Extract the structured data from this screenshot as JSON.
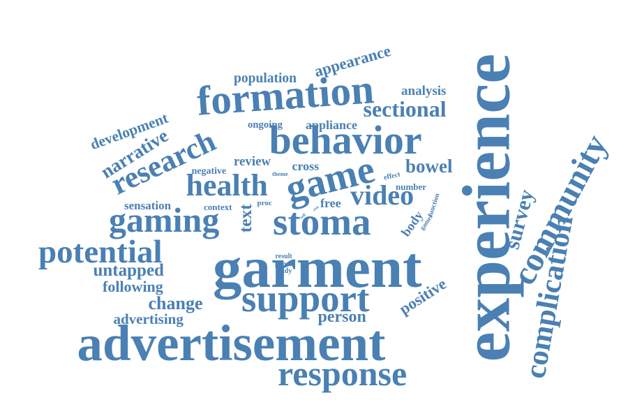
{
  "color": "#4a80b3",
  "words": [
    {
      "id": "advertisement",
      "text": "advertisement"
    },
    {
      "id": "experience",
      "text": "experience"
    },
    {
      "id": "garment",
      "text": "garment"
    },
    {
      "id": "support",
      "text": "support"
    },
    {
      "id": "stoma",
      "text": "stoma"
    },
    {
      "id": "behavior",
      "text": "behavior"
    },
    {
      "id": "formation",
      "text": "formation"
    },
    {
      "id": "response",
      "text": "response"
    },
    {
      "id": "community",
      "text": "community"
    },
    {
      "id": "gaming",
      "text": "gaming"
    },
    {
      "id": "potential",
      "text": "potential"
    },
    {
      "id": "health",
      "text": "health"
    },
    {
      "id": "game",
      "text": "game"
    },
    {
      "id": "research",
      "text": "research"
    },
    {
      "id": "video",
      "text": "video"
    },
    {
      "id": "complication",
      "text": "complication"
    },
    {
      "id": "sectional",
      "text": "sectional"
    },
    {
      "id": "narrative",
      "text": "narrative"
    },
    {
      "id": "development",
      "text": "development"
    },
    {
      "id": "untapped",
      "text": "untapped"
    },
    {
      "id": "following",
      "text": "following"
    },
    {
      "id": "change",
      "text": "change"
    },
    {
      "id": "bowel",
      "text": "bowel"
    },
    {
      "id": "survey",
      "text": "survey"
    },
    {
      "id": "person",
      "text": "person"
    },
    {
      "id": "advertising",
      "text": "advertising"
    },
    {
      "id": "appearance",
      "text": "appearance"
    },
    {
      "id": "population",
      "text": "population"
    },
    {
      "id": "analysis",
      "text": "analysis"
    },
    {
      "id": "positive",
      "text": "positive"
    },
    {
      "id": "body",
      "text": "body"
    },
    {
      "id": "review",
      "text": "review"
    },
    {
      "id": "cross",
      "text": "cross"
    },
    {
      "id": "free",
      "text": "free"
    },
    {
      "id": "text",
      "text": "text"
    },
    {
      "id": "ongoing",
      "text": "ongoing"
    },
    {
      "id": "appliance",
      "text": "appliance"
    },
    {
      "id": "negative",
      "text": "negative"
    },
    {
      "id": "sensation",
      "text": "sensation"
    },
    {
      "id": "context",
      "text": "context"
    },
    {
      "id": "theme",
      "text": "theme"
    },
    {
      "id": "effect",
      "text": "effect"
    },
    {
      "id": "number",
      "text": "number"
    },
    {
      "id": "function",
      "text": "function"
    },
    {
      "id": "gamer",
      "text": "gamer"
    },
    {
      "id": "proc",
      "text": "proc"
    },
    {
      "id": "result",
      "text": "result"
    },
    {
      "id": "paper",
      "text": "paper"
    },
    {
      "id": "study",
      "text": "study"
    },
    {
      "id": "risk",
      "text": "risk"
    },
    {
      "id": "self",
      "text": "self"
    }
  ]
}
